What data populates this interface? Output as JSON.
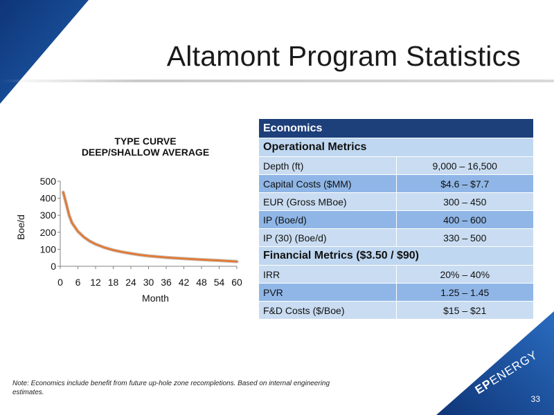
{
  "slide": {
    "title": "Altamont Program Statistics",
    "page_number": "33",
    "note": "Note: Economics include benefit from future up-hole zone recompletions.  Based on internal engineering estimates.",
    "logo": {
      "ep": "EP",
      "energy": "ENERGY"
    }
  },
  "colors": {
    "header_blue": "#1d3f7a",
    "section_blue": "#bfd7f0",
    "row_light": "#c9dcf1",
    "row_dark": "#8fb6e6",
    "curve": "#e07b39",
    "corner_navy": "#123a7a"
  },
  "chart_data": {
    "type": "line",
    "title": "TYPE CURVE",
    "subtitle": "DEEP/SHALLOW AVERAGE",
    "xlabel": "Month",
    "ylabel": "Boe/d",
    "ylim": [
      0,
      500
    ],
    "xlim": [
      0,
      60
    ],
    "yticks": [
      "0",
      "100",
      "200",
      "300",
      "400",
      "500"
    ],
    "xticks": [
      "0",
      "6",
      "12",
      "18",
      "24",
      "30",
      "36",
      "42",
      "48",
      "54",
      "60"
    ],
    "grid": false,
    "x": [
      1,
      2,
      3,
      4,
      6,
      8,
      10,
      12,
      15,
      18,
      21,
      24,
      27,
      30,
      36,
      42,
      48,
      54,
      60
    ],
    "y": [
      435,
      370,
      300,
      255,
      205,
      172,
      148,
      130,
      110,
      95,
      84,
      75,
      67,
      61,
      52,
      45,
      39,
      34,
      28
    ]
  },
  "table": {
    "header": "Economics",
    "sections": [
      {
        "title": "Operational Metrics",
        "rows": [
          {
            "label": "Depth (ft)",
            "value": "9,000 – 16,500"
          },
          {
            "label": "Capital Costs ($MM)",
            "value": "$4.6 – $7.7"
          },
          {
            "label": "EUR (Gross MBoe)",
            "value": "300 – 450"
          },
          {
            "label": "IP (Boe/d)",
            "value": "400 – 600"
          },
          {
            "label": "IP (30) (Boe/d)",
            "value": "330 – 500"
          }
        ]
      },
      {
        "title": "Financial Metrics ($3.50 / $90)",
        "rows": [
          {
            "label": "IRR",
            "value": "20% – 40%"
          },
          {
            "label": "PVR",
            "value": "1.25 – 1.45"
          },
          {
            "label": "F&D Costs ($/Boe)",
            "value": "$15 – $21"
          }
        ]
      }
    ]
  }
}
